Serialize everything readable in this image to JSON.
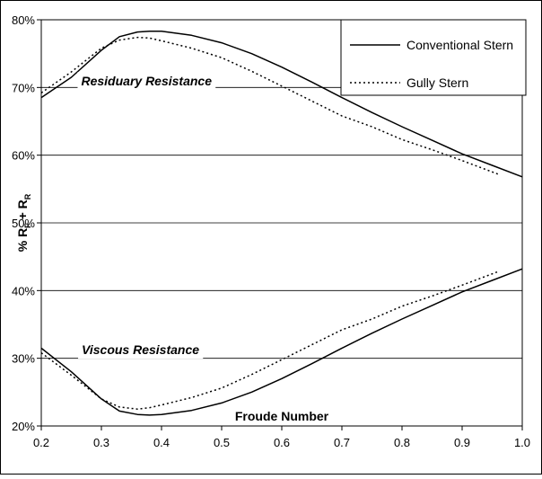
{
  "chart_data": {
    "type": "line",
    "title": "",
    "xlabel": "Froude Number",
    "ylabel": "% R",
    "ylabel_sub1": "F",
    "ylabel_plus": " + R",
    "ylabel_sub2": "R",
    "xlim": [
      0.2,
      1.0
    ],
    "ylim": [
      20,
      80
    ],
    "x_ticks": [
      0.2,
      0.3,
      0.4,
      0.5,
      0.6,
      0.7,
      0.8,
      0.9,
      1.0
    ],
    "x_tick_labels": [
      "0.2",
      "0.3",
      "0.4",
      "0.5",
      "0.6",
      "0.7",
      "0.8",
      "0.9",
      "1.0"
    ],
    "y_ticks": [
      20,
      30,
      40,
      50,
      60,
      70,
      80
    ],
    "y_tick_labels": [
      "20%",
      "30%",
      "40%",
      "50%",
      "60%",
      "70%",
      "80%"
    ],
    "grid": true,
    "legend_position": "top-right",
    "annotations": [
      {
        "text": "Residuary Resistance",
        "x": 0.375,
        "y": 70.3
      },
      {
        "text": "Viscous Resistance",
        "x": 0.365,
        "y": 30.6
      }
    ],
    "series": [
      {
        "name": "Conventional Stern",
        "style": "solid",
        "color": "#000000",
        "x": [
          0.2,
          0.25,
          0.3,
          0.33,
          0.36,
          0.38,
          0.4,
          0.45,
          0.5,
          0.55,
          0.6,
          0.65,
          0.7,
          0.75,
          0.8,
          0.85,
          0.9,
          0.95,
          1.0
        ],
        "y": [
          68.5,
          71.5,
          75.5,
          77.5,
          78.2,
          78.3,
          78.3,
          77.7,
          76.6,
          75.0,
          73.0,
          70.8,
          68.5,
          66.3,
          64.2,
          62.2,
          60.2,
          58.5,
          56.8
        ]
      },
      {
        "name": "Gully Stern",
        "style": "dotted",
        "color": "#000000",
        "x": [
          0.2,
          0.25,
          0.3,
          0.33,
          0.36,
          0.38,
          0.4,
          0.45,
          0.5,
          0.55,
          0.6,
          0.65,
          0.7,
          0.75,
          0.8,
          0.85,
          0.9,
          0.96
        ],
        "y": [
          69.2,
          72.3,
          75.8,
          77.0,
          77.4,
          77.3,
          76.9,
          75.8,
          74.4,
          72.4,
          70.2,
          68.0,
          65.8,
          64.2,
          62.3,
          60.8,
          59.2,
          57.2
        ]
      },
      {
        "name": "Conventional Stern",
        "style": "solid",
        "color": "#000000",
        "x": [
          0.2,
          0.25,
          0.3,
          0.33,
          0.36,
          0.38,
          0.4,
          0.45,
          0.5,
          0.55,
          0.6,
          0.65,
          0.7,
          0.75,
          0.8,
          0.85,
          0.9,
          0.95,
          1.0
        ],
        "y": [
          31.5,
          28.0,
          24.0,
          22.2,
          21.7,
          21.6,
          21.7,
          22.3,
          23.4,
          25.0,
          27.0,
          29.2,
          31.5,
          33.7,
          35.8,
          37.8,
          39.8,
          41.5,
          43.2
        ]
      },
      {
        "name": "Gully Stern",
        "style": "dotted",
        "color": "#000000",
        "x": [
          0.2,
          0.25,
          0.3,
          0.33,
          0.36,
          0.38,
          0.4,
          0.45,
          0.5,
          0.55,
          0.6,
          0.65,
          0.7,
          0.75,
          0.8,
          0.85,
          0.9,
          0.96
        ],
        "y": [
          30.8,
          27.5,
          24.0,
          22.8,
          22.5,
          22.7,
          23.1,
          24.2,
          25.6,
          27.6,
          29.8,
          32.0,
          34.2,
          35.8,
          37.7,
          39.2,
          40.8,
          42.8
        ]
      }
    ],
    "legend_entries": [
      "Conventional Stern",
      "Gully Stern"
    ]
  }
}
